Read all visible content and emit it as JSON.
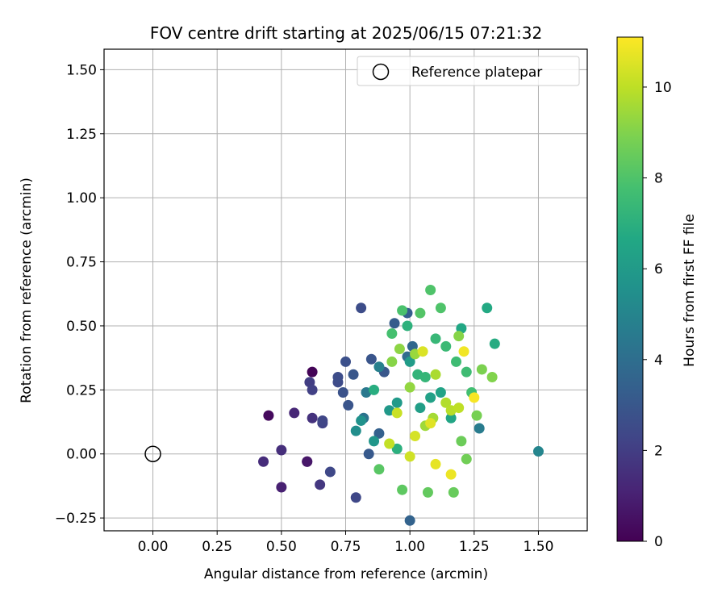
{
  "chart_data": {
    "type": "scatter",
    "title": "FOV centre drift starting at 2025/06/15 07:21:32",
    "xlabel": "Angular distance from reference (arcmin)",
    "ylabel": "Rotation from reference (arcmin)",
    "xlim": [
      -0.19,
      1.69
    ],
    "ylim": [
      -0.3,
      1.58
    ],
    "xticks": [
      0.0,
      0.25,
      0.5,
      0.75,
      1.0,
      1.25,
      1.5
    ],
    "xtick_labels": [
      "0.00",
      "0.25",
      "0.50",
      "0.75",
      "1.00",
      "1.25",
      "1.50"
    ],
    "yticks": [
      -0.25,
      0.0,
      0.25,
      0.5,
      0.75,
      1.0,
      1.25,
      1.5
    ],
    "ytick_labels": [
      "−0.25",
      "0.00",
      "0.25",
      "0.50",
      "0.75",
      "1.00",
      "1.25",
      "1.50"
    ],
    "grid": true,
    "legend": {
      "placement": "top-right",
      "entries": [
        "Reference platepar"
      ]
    },
    "reference_point": {
      "x": 0.0,
      "y": 0.0,
      "label": "Reference platepar"
    },
    "colorbar": {
      "label": "Hours from first FF file",
      "min": 0,
      "max": 11.1,
      "ticks": [
        0,
        2,
        4,
        6,
        8,
        10
      ],
      "colormap": "viridis"
    },
    "series": [
      {
        "points": [
          [
            0.62,
            0.32,
            0.1
          ],
          [
            0.45,
            0.15,
            0.3
          ],
          [
            0.6,
            -0.03,
            0.5
          ],
          [
            0.6,
            -0.03,
            0.7
          ],
          [
            0.5,
            -0.13,
            1.0
          ],
          [
            0.55,
            0.16,
            1.2
          ],
          [
            0.43,
            -0.03,
            1.4
          ],
          [
            0.5,
            0.015,
            1.5
          ],
          [
            0.62,
            0.14,
            1.6
          ],
          [
            0.65,
            -0.12,
            1.8
          ],
          [
            0.61,
            0.28,
            2.0
          ],
          [
            0.62,
            0.25,
            2.1
          ],
          [
            0.66,
            0.12,
            2.2
          ],
          [
            0.66,
            0.13,
            2.3
          ],
          [
            0.69,
            -0.07,
            2.4
          ],
          [
            0.72,
            0.28,
            2.5
          ],
          [
            0.72,
            0.3,
            2.6
          ],
          [
            0.75,
            0.36,
            2.7
          ],
          [
            0.74,
            0.24,
            2.8
          ],
          [
            0.76,
            0.19,
            2.9
          ],
          [
            0.81,
            0.57,
            2.6
          ],
          [
            0.85,
            0.37,
            2.9
          ],
          [
            0.79,
            -0.17,
            2.4
          ],
          [
            0.78,
            0.31,
            3.0
          ],
          [
            0.84,
            0.0,
            3.1
          ],
          [
            0.9,
            0.32,
            3.0
          ],
          [
            0.94,
            0.51,
            3.2
          ],
          [
            0.99,
            0.55,
            3.3
          ],
          [
            0.88,
            0.08,
            3.4
          ],
          [
            1.0,
            -0.26,
            3.5
          ],
          [
            1.01,
            0.42,
            3.7
          ],
          [
            0.99,
            0.38,
            3.9
          ],
          [
            0.82,
            0.14,
            4.2
          ],
          [
            0.83,
            0.24,
            4.5
          ],
          [
            0.88,
            0.34,
            4.8
          ],
          [
            1.27,
            0.1,
            4.6
          ],
          [
            1.5,
            0.01,
            5.0
          ],
          [
            0.79,
            0.09,
            5.4
          ],
          [
            0.81,
            0.13,
            5.6
          ],
          [
            0.86,
            0.05,
            5.8
          ],
          [
            0.92,
            0.17,
            5.9
          ],
          [
            0.95,
            0.2,
            6.0
          ],
          [
            1.0,
            0.36,
            6.1
          ],
          [
            1.04,
            0.18,
            6.2
          ],
          [
            1.08,
            0.22,
            6.3
          ],
          [
            1.12,
            0.24,
            6.4
          ],
          [
            1.16,
            0.14,
            6.5
          ],
          [
            1.2,
            0.49,
            6.6
          ],
          [
            1.3,
            0.57,
            6.7
          ],
          [
            1.33,
            0.43,
            6.8
          ],
          [
            0.86,
            0.25,
            6.9
          ],
          [
            0.95,
            0.02,
            7.0
          ],
          [
            0.99,
            0.5,
            7.1
          ],
          [
            1.03,
            0.31,
            7.2
          ],
          [
            1.06,
            0.3,
            7.3
          ],
          [
            1.1,
            0.45,
            7.4
          ],
          [
            1.14,
            0.42,
            7.5
          ],
          [
            1.18,
            0.36,
            7.6
          ],
          [
            1.22,
            0.32,
            7.6
          ],
          [
            1.24,
            0.24,
            7.7
          ],
          [
            0.93,
            0.47,
            7.8
          ],
          [
            0.97,
            0.56,
            7.9
          ],
          [
            1.08,
            0.64,
            8.0
          ],
          [
            1.12,
            0.57,
            8.0
          ],
          [
            1.04,
            0.55,
            8.1
          ],
          [
            0.88,
            -0.06,
            8.2
          ],
          [
            0.97,
            -0.14,
            8.3
          ],
          [
            1.07,
            -0.15,
            8.4
          ],
          [
            1.17,
            -0.15,
            8.5
          ],
          [
            1.2,
            0.05,
            8.6
          ],
          [
            1.22,
            -0.02,
            8.7
          ],
          [
            1.26,
            0.15,
            8.8
          ],
          [
            1.28,
            0.33,
            8.9
          ],
          [
            1.32,
            0.3,
            9.0
          ],
          [
            1.19,
            0.46,
            9.1
          ],
          [
            0.93,
            0.36,
            9.1
          ],
          [
            0.96,
            0.41,
            9.2
          ],
          [
            1.0,
            0.26,
            9.3
          ],
          [
            1.02,
            0.39,
            9.4
          ],
          [
            1.06,
            0.11,
            9.5
          ],
          [
            1.09,
            0.14,
            9.6
          ],
          [
            1.1,
            0.31,
            9.7
          ],
          [
            1.14,
            0.2,
            9.8
          ],
          [
            1.16,
            0.17,
            9.9
          ],
          [
            1.19,
            0.18,
            10.0
          ],
          [
            0.92,
            0.04,
            10.1
          ],
          [
            0.95,
            0.16,
            10.2
          ],
          [
            1.0,
            -0.01,
            10.3
          ],
          [
            1.02,
            0.07,
            10.4
          ],
          [
            1.05,
            0.4,
            10.5
          ],
          [
            1.08,
            0.12,
            10.6
          ],
          [
            1.1,
            -0.04,
            10.7
          ],
          [
            1.16,
            -0.08,
            10.8
          ],
          [
            1.21,
            0.4,
            10.9
          ],
          [
            1.25,
            0.22,
            11.0
          ]
        ]
      }
    ]
  }
}
